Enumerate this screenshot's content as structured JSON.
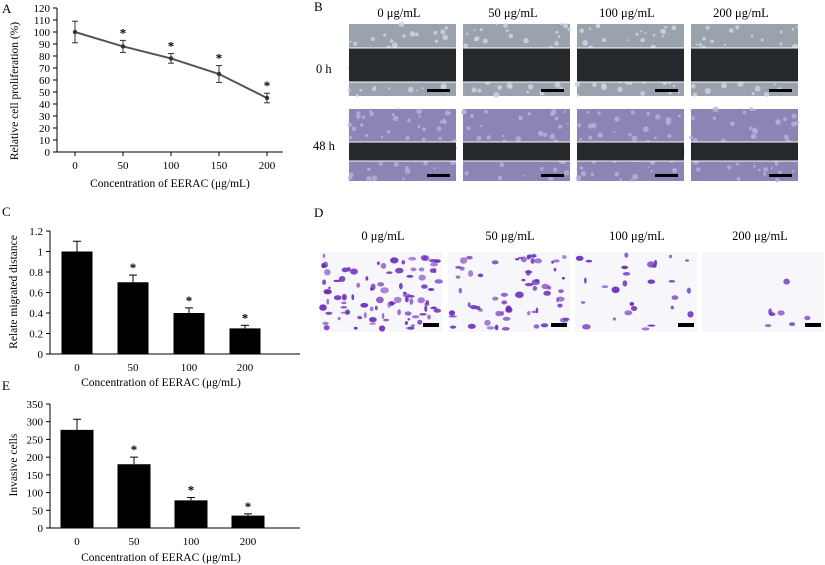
{
  "panels": {
    "A": {
      "letter": "A",
      "chart_data": {
        "type": "line",
        "x": [
          0,
          50,
          100,
          150,
          200
        ],
        "y": [
          100,
          88,
          78,
          65,
          45
        ],
        "err": [
          9,
          5,
          4,
          7,
          4
        ],
        "significant": [
          false,
          true,
          true,
          true,
          true
        ],
        "marker": "*",
        "xlabel": "Concentration of EERAC (μg/mL)",
        "ylabel": "Relative cell proliferation (%)",
        "ylim": [
          0,
          120
        ],
        "yticks": [
          0,
          10,
          20,
          30,
          40,
          50,
          60,
          70,
          80,
          90,
          100,
          110,
          120
        ],
        "xticks": [
          "0",
          "50",
          "100",
          "150",
          "200"
        ],
        "line_color": "#555555"
      }
    },
    "B": {
      "letter": "B",
      "columns": [
        "0 μg/mL",
        "50 μg/mL",
        "100 μg/mL",
        "200 μg/mL"
      ],
      "rows": [
        "0 h",
        "48 h"
      ]
    },
    "C": {
      "letter": "C",
      "chart_data": {
        "type": "bar",
        "categories": [
          "0",
          "50",
          "100",
          "200"
        ],
        "values": [
          1.0,
          0.7,
          0.4,
          0.25
        ],
        "err": [
          0.1,
          0.07,
          0.05,
          0.03
        ],
        "significant": [
          false,
          true,
          true,
          true
        ],
        "marker": "*",
        "xlabel": "Concentration of EERAC (μg/mL)",
        "ylabel": "Relate migrated distance",
        "ylim": [
          0,
          1.2
        ],
        "yticks": [
          "0",
          "0.2",
          "0.4",
          "0.6",
          "0.8",
          "1",
          "1.2"
        ],
        "bar_color": "#000000"
      }
    },
    "D": {
      "letter": "D",
      "columns": [
        "0 μg/mL",
        "50 μg/mL",
        "100 μg/mL",
        "200 μg/mL"
      ],
      "stain_density": [
        0.85,
        0.55,
        0.22,
        0.03
      ],
      "stain_color": "#6a2bb8"
    },
    "E": {
      "letter": "E",
      "chart_data": {
        "type": "bar",
        "categories": [
          "0",
          "50",
          "100",
          "200"
        ],
        "values": [
          277,
          180,
          78,
          35
        ],
        "err": [
          30,
          20,
          8,
          5
        ],
        "significant": [
          false,
          true,
          true,
          true
        ],
        "marker": "*",
        "xlabel": "Concentration of EERAC (μg/mL)",
        "ylabel": "Invasive cells",
        "ylim": [
          0,
          350
        ],
        "yticks": [
          "0",
          "50",
          "100",
          "150",
          "200",
          "250",
          "300",
          "350"
        ],
        "bar_color": "#000000"
      }
    }
  }
}
